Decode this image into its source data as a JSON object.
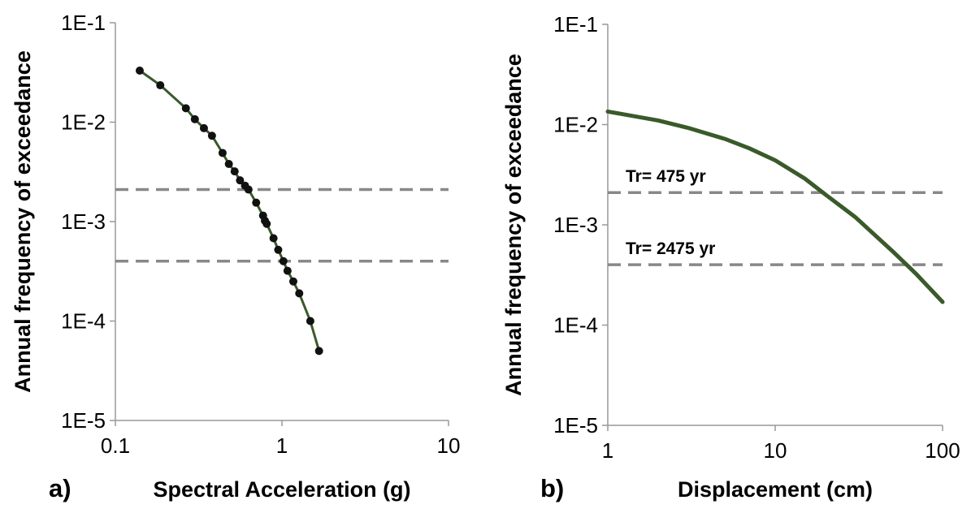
{
  "colors": {
    "curve": "#3a5a2a",
    "markers": "#111111",
    "reference_lines": "#888888",
    "axis": "#999999",
    "text": "#000000"
  },
  "chart_data": [
    {
      "panel_label": "a)",
      "type": "line",
      "xscale": "log",
      "yscale": "log",
      "xlabel": "Spectral Acceleration (g)",
      "ylabel": "Annual frequency of exceedance",
      "xlim": [
        0.1,
        10
      ],
      "ylim": [
        1e-05,
        0.1
      ],
      "x_ticks": [
        {
          "value": 0.1,
          "label": "0.1"
        },
        {
          "value": 1,
          "label": "1"
        },
        {
          "value": 10,
          "label": "10"
        }
      ],
      "y_ticks": [
        {
          "value": 1e-05,
          "label": "1E-5"
        },
        {
          "value": 0.0001,
          "label": "1E-4"
        },
        {
          "value": 0.001,
          "label": "1E-3"
        },
        {
          "value": 0.01,
          "label": "1E-2"
        },
        {
          "value": 0.1,
          "label": "1E-1"
        }
      ],
      "grid": false,
      "legend": "none",
      "markers": true,
      "series": [
        {
          "x": [
            0.14,
            0.186,
            0.265,
            0.3,
            0.34,
            0.38,
            0.44,
            0.48,
            0.52,
            0.56,
            0.6,
            0.63,
            0.7,
            0.77,
            0.79,
            0.81,
            0.89,
            0.95,
            1.02,
            1.08,
            1.17,
            1.27,
            1.48,
            1.67
          ],
          "y": [
            0.033,
            0.0235,
            0.0138,
            0.0107,
            0.0087,
            0.0073,
            0.0049,
            0.0038,
            0.0032,
            0.0026,
            0.0023,
            0.0021,
            0.00155,
            0.00115,
            0.00102,
            0.00095,
            0.00068,
            0.00052,
            0.0004,
            0.00032,
            0.00025,
            0.00019,
            0.0001,
            5e-05
          ]
        }
      ],
      "reference_lines": [
        {
          "y": 0.0021
        },
        {
          "y": 0.0004
        }
      ]
    },
    {
      "panel_label": "b)",
      "type": "line",
      "xscale": "log",
      "yscale": "log",
      "xlabel": "Displacement (cm)",
      "ylabel": "Annual frequency of exceedance",
      "xlim": [
        1,
        100
      ],
      "ylim": [
        1e-05,
        0.1
      ],
      "x_ticks": [
        {
          "value": 1,
          "label": "1"
        },
        {
          "value": 10,
          "label": "10"
        },
        {
          "value": 100,
          "label": "100"
        }
      ],
      "y_ticks": [
        {
          "value": 1e-05,
          "label": "1E-5"
        },
        {
          "value": 0.0001,
          "label": "1E-4"
        },
        {
          "value": 0.001,
          "label": "1E-3"
        },
        {
          "value": 0.01,
          "label": "1E-2"
        },
        {
          "value": 0.1,
          "label": "1E-1"
        }
      ],
      "grid": false,
      "legend": "none",
      "markers": false,
      "series": [
        {
          "x": [
            1,
            2,
            3,
            5,
            7,
            10,
            15,
            20,
            30,
            50,
            70,
            100
          ],
          "y": [
            0.0135,
            0.011,
            0.0093,
            0.0072,
            0.0058,
            0.0044,
            0.0029,
            0.002,
            0.0012,
            0.00055,
            0.00032,
            0.00017
          ]
        }
      ],
      "reference_lines": [
        {
          "y": 0.0021,
          "label": "Tr= 475 yr"
        },
        {
          "y": 0.0004,
          "label": "Tr= 2475 yr"
        }
      ]
    }
  ]
}
